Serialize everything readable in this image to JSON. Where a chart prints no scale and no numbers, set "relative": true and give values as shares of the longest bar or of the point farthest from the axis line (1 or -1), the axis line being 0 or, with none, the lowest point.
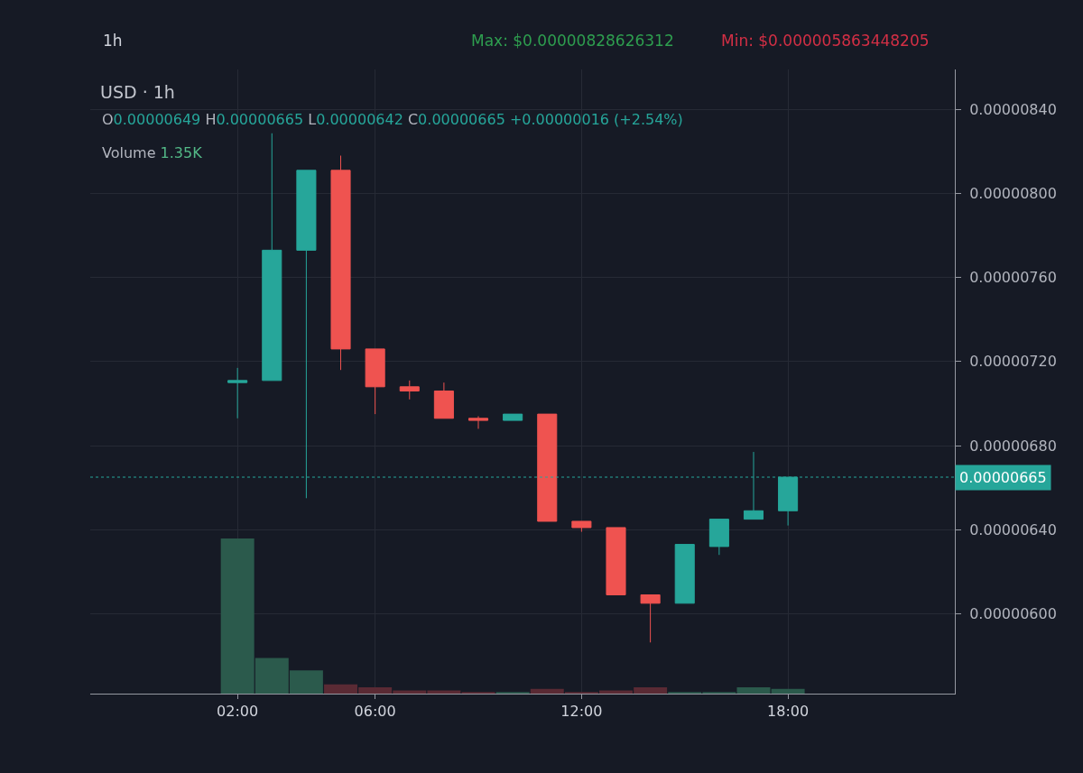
{
  "chart_data": [
    {
      "type": "candlestick",
      "title": "USD · 1h",
      "x": [
        2,
        3,
        4,
        5,
        6,
        7,
        8,
        9,
        10,
        11,
        12,
        13,
        14,
        15,
        16,
        17,
        18
      ],
      "ohlc": [
        [
          7.1e-06,
          7.17e-06,
          6.93e-06,
          7.11e-06
        ],
        [
          7.11e-06,
          8.28626312e-06,
          7.11e-06,
          7.73e-06
        ],
        [
          7.73e-06,
          8.11e-06,
          6.55e-06,
          8.11e-06
        ],
        [
          8.11e-06,
          8.18e-06,
          7.16e-06,
          7.26e-06
        ],
        [
          7.26e-06,
          7.26e-06,
          6.95e-06,
          7.08e-06
        ],
        [
          7.08e-06,
          7.11e-06,
          7.02e-06,
          7.06e-06
        ],
        [
          7.06e-06,
          7.1e-06,
          6.93e-06,
          6.93e-06
        ],
        [
          6.93e-06,
          6.94e-06,
          6.88e-06,
          6.92e-06
        ],
        [
          6.92e-06,
          6.95e-06,
          6.92e-06,
          6.95e-06
        ],
        [
          6.95e-06,
          6.95e-06,
          6.44e-06,
          6.44e-06
        ],
        [
          6.44e-06,
          6.44e-06,
          6.39e-06,
          6.41e-06
        ],
        [
          6.41e-06,
          6.41e-06,
          6.09e-06,
          6.09e-06
        ],
        [
          6.09e-06,
          6.09e-06,
          5.863448205e-06,
          6.05e-06
        ],
        [
          6.05e-06,
          6.33e-06,
          6.05e-06,
          6.33e-06
        ],
        [
          6.32e-06,
          6.45e-06,
          6.28e-06,
          6.45e-06
        ],
        [
          6.45e-06,
          6.77e-06,
          6.45e-06,
          6.49e-06
        ],
        [
          6.49e-06,
          6.65e-06,
          6.42e-06,
          6.65e-06
        ]
      ],
      "colors": [
        "#26a69a",
        "#26a69a",
        "#26a69a",
        "#ef5350",
        "#ef5350",
        "#ef5350",
        "#ef5350",
        "#ef5350",
        "#26a69a",
        "#ef5350",
        "#ef5350",
        "#ef5350",
        "#ef5350",
        "#26a69a",
        "#26a69a",
        "#26a69a",
        "#26a69a"
      ],
      "xlim": [
        -2.28,
        22.85
      ],
      "xticks": [
        {
          "value": 2,
          "label": "02:00"
        },
        {
          "value": 6,
          "label": "06:00"
        },
        {
          "value": 12,
          "label": "12:00"
        },
        {
          "value": 18,
          "label": "18:00"
        }
      ],
      "ylim": [
        5.62e-06,
        8.59e-06
      ],
      "yticks": [
        {
          "value": 8.4e-06,
          "label": "0.00000840"
        },
        {
          "value": 8e-06,
          "label": "0.00000800"
        },
        {
          "value": 7.6e-06,
          "label": "0.00000760"
        },
        {
          "value": 7.2e-06,
          "label": "0.00000720"
        },
        {
          "value": 6.8e-06,
          "label": "0.00000680"
        },
        {
          "value": 6.4e-06,
          "label": "0.00000640"
        },
        {
          "value": 6e-06,
          "label": "0.00000600"
        }
      ],
      "grid": true,
      "ref_lines": [
        {
          "axis": "y",
          "value": 6.65e-06,
          "label": "0.00000665",
          "color": "#26a69a",
          "line_style": "dotted"
        }
      ],
      "annotations": [
        "1h",
        "Max: $0.00000828626312",
        "Min: $0.000005863448205",
        "O0.00000649 H0.00000665 L0.00000642 C0.00000665 +0.00000016 (+2.54%)",
        "Volume 1.35K"
      ]
    },
    {
      "type": "bar",
      "relative": true,
      "tick_labels": false,
      "x": [
        2,
        3,
        4,
        5,
        6,
        7,
        8,
        9,
        10,
        11,
        12,
        13,
        14,
        15,
        16,
        17,
        18
      ],
      "xlim": [
        -2.28,
        22.85
      ],
      "values": [
        1,
        0.23,
        0.15,
        0.06,
        0.04,
        0.02,
        0.02,
        0.01,
        0.01,
        0.03,
        0.01,
        0.02,
        0.04,
        0.01,
        0.01,
        0.04,
        0.03
      ],
      "colors": [
        "#2b5a4c",
        "#2b5a4c",
        "#2b5a4c",
        "#5a2a34",
        "#5a2a34",
        "#5a2a34",
        "#5a2a34",
        "#5a2a34",
        "#2b5a4c",
        "#5a2a34",
        "#5a2a34",
        "#5a2a34",
        "#5a2a34",
        "#2b5a4c",
        "#2b5a4c",
        "#2b5a4c",
        "#2b5a4c"
      ]
    }
  ]
}
